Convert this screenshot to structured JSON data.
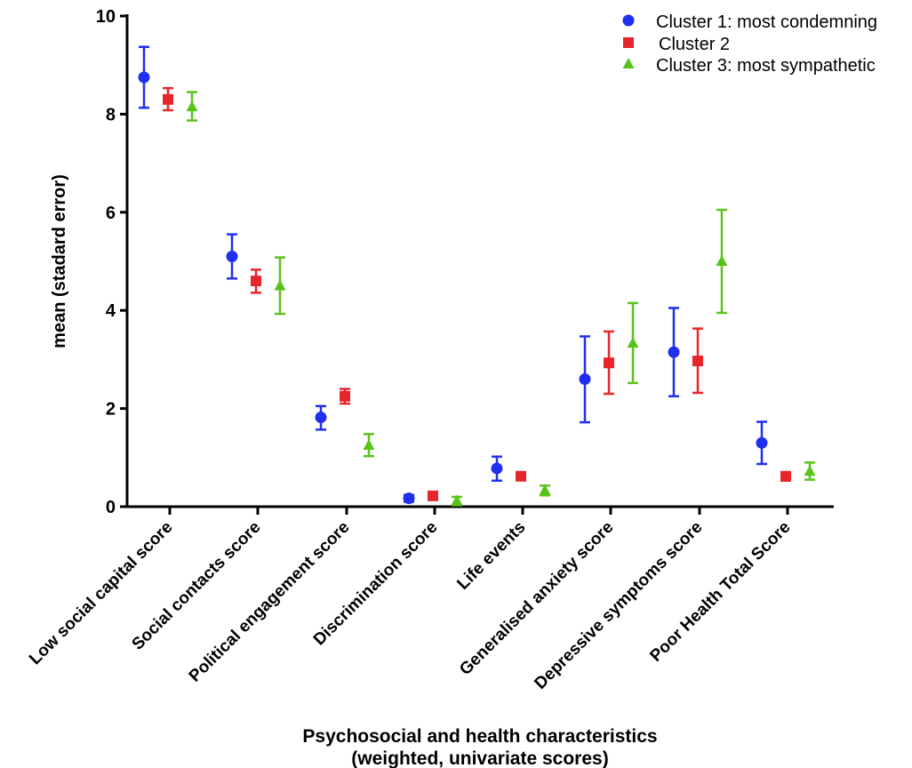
{
  "chart_data": {
    "type": "scatter",
    "subtype": "mean-with-error-bars",
    "ylabel": "mean (stadard error)",
    "xlabel": "Psychosocial and health characteristics",
    "xlabel_line2": "(weighted, univariate scores)",
    "ylim": [
      0,
      10
    ],
    "yticks": [
      "0",
      "2",
      "4",
      "6",
      "8",
      "10"
    ],
    "grid": false,
    "legend_position": "top-right",
    "categories": [
      "Low social capital score",
      "Social contacts score",
      "Political engagement score",
      "Discrimination score",
      "Life events",
      "Generalised anxiety score",
      "Depressive symptoms score",
      "Poor Health Total Score"
    ],
    "series": [
      {
        "name": "Cluster 1: most condemning",
        "marker": "circle",
        "color": "#1f2ff0",
        "values": [
          8.75,
          5.1,
          1.82,
          0.17,
          0.78,
          2.6,
          3.15,
          1.3
        ],
        "lower": [
          8.13,
          4.65,
          1.57,
          0.1,
          0.53,
          1.72,
          2.25,
          0.87
        ],
        "upper": [
          9.37,
          5.55,
          2.05,
          0.24,
          1.02,
          3.47,
          4.05,
          1.73
        ]
      },
      {
        "name": "Cluster 2",
        "marker": "square",
        "color": "#e8252b",
        "values": [
          8.3,
          4.6,
          2.25,
          0.22,
          0.62,
          2.93,
          2.97,
          0.62
        ],
        "lower": [
          8.08,
          4.36,
          2.1,
          0.17,
          0.58,
          2.3,
          2.32,
          0.53
        ],
        "upper": [
          8.53,
          4.83,
          2.4,
          0.28,
          0.66,
          3.57,
          3.63,
          0.7
        ]
      },
      {
        "name": "Cluster 3: most sympathetic",
        "marker": "triangle",
        "color": "#5ac31a",
        "values": [
          8.15,
          4.5,
          1.25,
          0.12,
          0.33,
          3.33,
          5.0,
          0.72
        ],
        "lower": [
          7.87,
          3.93,
          1.03,
          0.03,
          0.23,
          2.52,
          3.95,
          0.55
        ],
        "upper": [
          8.45,
          5.08,
          1.48,
          0.2,
          0.43,
          4.15,
          6.05,
          0.9
        ]
      }
    ]
  }
}
